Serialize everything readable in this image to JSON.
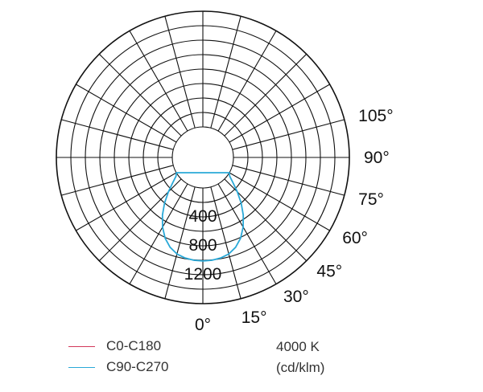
{
  "chart_data": {
    "type": "polar",
    "angle_labels": [
      "0°",
      "15°",
      "30°",
      "45°",
      "60°",
      "75°",
      "90°",
      "105°"
    ],
    "radial_labels": [
      "400",
      "800",
      "1200"
    ],
    "radial_range": [
      0,
      1600
    ],
    "angle_unit": "degrees",
    "series": [
      {
        "name": "C0-C180",
        "color": "#d2385a",
        "points": []
      },
      {
        "name": "C90-C270",
        "color": "#2aa9d8",
        "points": [
          {
            "angle": 0,
            "value": 1010
          },
          {
            "angle": 5,
            "value": 1005
          },
          {
            "angle": 10,
            "value": 990
          },
          {
            "angle": 15,
            "value": 960
          },
          {
            "angle": 20,
            "value": 900
          },
          {
            "angle": 25,
            "value": 810
          },
          {
            "angle": 30,
            "value": 690
          },
          {
            "angle": 35,
            "value": 550
          },
          {
            "angle": 40,
            "value": 400
          },
          {
            "angle": 45,
            "value": 250
          },
          {
            "angle": 50,
            "value": 120
          },
          {
            "angle": 55,
            "value": 30
          },
          {
            "angle": 60,
            "value": 0
          }
        ]
      }
    ],
    "grid": true,
    "legend_position": "bottom-left"
  },
  "legend": {
    "items": [
      {
        "label": "C0-C180",
        "color": "#d2385a"
      },
      {
        "label": "C90-C270",
        "color": "#2aa9d8"
      }
    ]
  },
  "info": {
    "cct": "4000 K",
    "unit": "(cd/klm)"
  }
}
